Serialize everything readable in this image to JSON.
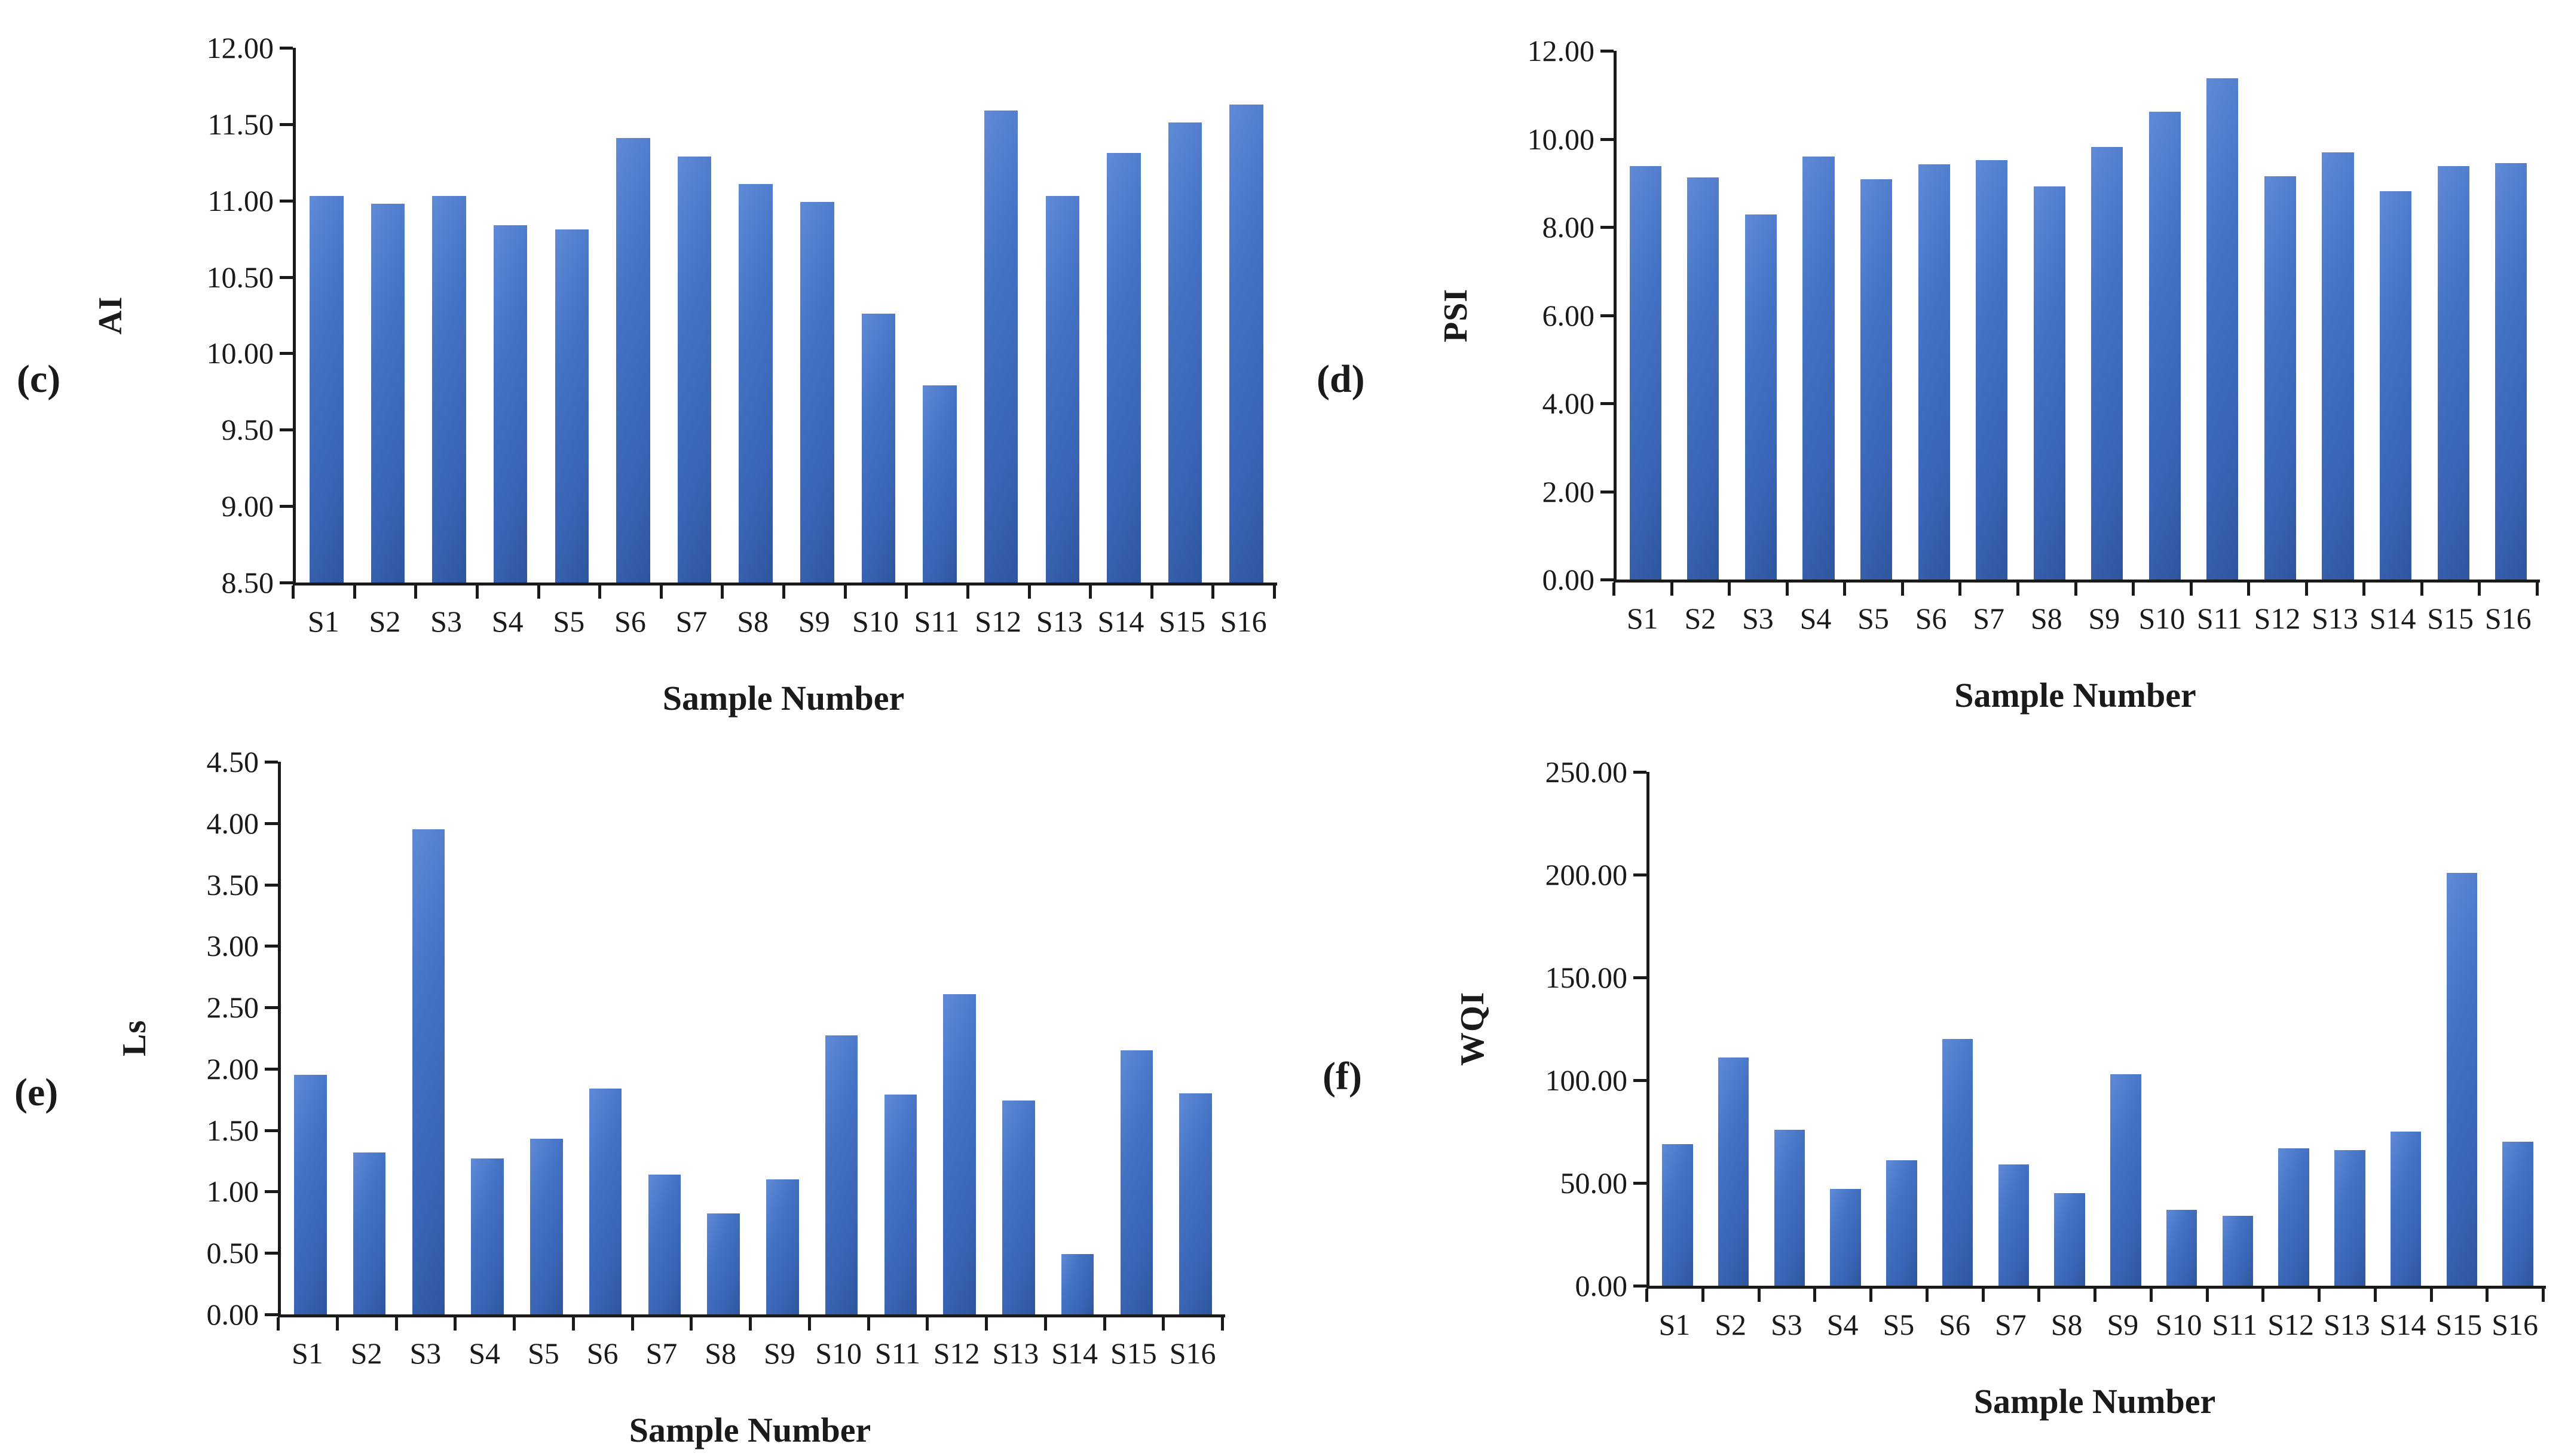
{
  "figure": {
    "background": "#ffffff",
    "bar_color": "#4472c4",
    "axis_color": "#1a1a1a",
    "x_axis_title": "Sample Number"
  },
  "chart_data": [
    {
      "type": "bar",
      "panel_label": "(c)",
      "ylabel": "AI",
      "xlabel": "Sample Number",
      "ylim": [
        8.5,
        12.0
      ],
      "ystep": 0.5,
      "tick_decimals": 2,
      "grid": false,
      "legend": "none",
      "categories": [
        "S1",
        "S2",
        "S3",
        "S4",
        "S5",
        "S6",
        "S7",
        "S8",
        "S9",
        "S10",
        "S11",
        "S12",
        "S13",
        "S14",
        "S15",
        "S16"
      ],
      "values": [
        11.03,
        10.98,
        11.03,
        10.84,
        10.81,
        11.41,
        11.29,
        11.11,
        10.99,
        10.26,
        9.79,
        11.59,
        11.03,
        11.31,
        11.51,
        11.63
      ]
    },
    {
      "type": "bar",
      "panel_label": "(d)",
      "ylabel": "PSI",
      "xlabel": "Sample Number",
      "ylim": [
        0.0,
        12.0
      ],
      "ystep": 2.0,
      "tick_decimals": 2,
      "grid": false,
      "legend": "none",
      "categories": [
        "S1",
        "S2",
        "S3",
        "S4",
        "S5",
        "S6",
        "S7",
        "S8",
        "S9",
        "S10",
        "S11",
        "S12",
        "S13",
        "S14",
        "S15",
        "S16"
      ],
      "values": [
        9.38,
        9.12,
        8.28,
        9.6,
        9.08,
        9.42,
        9.52,
        8.92,
        9.82,
        10.62,
        11.38,
        9.15,
        9.7,
        8.82,
        9.38,
        9.45
      ]
    },
    {
      "type": "bar",
      "panel_label": "(e)",
      "ylabel": "Ls",
      "xlabel": "Sample Number",
      "ylim": [
        0.0,
        4.5
      ],
      "ystep": 0.5,
      "tick_decimals": 2,
      "grid": false,
      "legend": "none",
      "categories": [
        "S1",
        "S2",
        "S3",
        "S4",
        "S5",
        "S6",
        "S7",
        "S8",
        "S9",
        "S10",
        "S11",
        "S12",
        "S13",
        "S14",
        "S15",
        "S16"
      ],
      "values": [
        1.95,
        1.32,
        3.95,
        1.27,
        1.43,
        1.84,
        1.14,
        0.82,
        1.1,
        2.27,
        1.79,
        2.61,
        1.74,
        0.49,
        2.15,
        1.8
      ]
    },
    {
      "type": "bar",
      "panel_label": "(f)",
      "ylabel": "WQI",
      "xlabel": "Sample Number",
      "ylim": [
        0.0,
        250.0
      ],
      "ystep": 50.0,
      "tick_decimals": 2,
      "grid": false,
      "legend": "none",
      "categories": [
        "S1",
        "S2",
        "S3",
        "S4",
        "S5",
        "S6",
        "S7",
        "S8",
        "S9",
        "S10",
        "S11",
        "S12",
        "S13",
        "S14",
        "S15",
        "S16"
      ],
      "values": [
        69,
        111,
        76,
        47,
        61,
        120,
        59,
        45,
        103,
        37,
        34,
        67,
        66,
        75,
        201,
        70
      ]
    }
  ]
}
